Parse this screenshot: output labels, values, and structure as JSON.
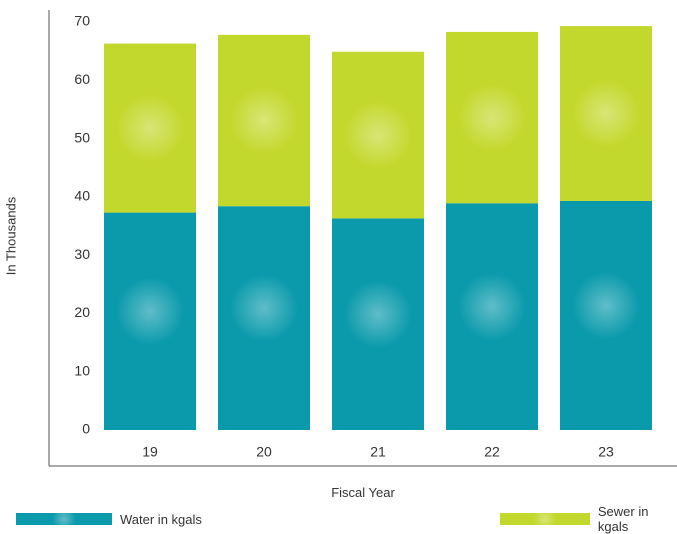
{
  "chart_data": {
    "type": "bar",
    "stacked": true,
    "categories": [
      "19",
      "20",
      "21",
      "22",
      "23"
    ],
    "series": [
      {
        "name": "Water in kgals",
        "color": "#0a9aab",
        "values": [
          37.3,
          38.4,
          36.3,
          38.9,
          39.3
        ]
      },
      {
        "name": "Sewer in kgals",
        "color": "#c3d82c",
        "values": [
          29.0,
          29.4,
          28.6,
          29.4,
          30.0
        ]
      }
    ],
    "xlabel": "Fiscal Year",
    "ylabel": "In Thousands",
    "ylim": [
      0,
      70
    ],
    "yticks": [
      0,
      10,
      20,
      30,
      40,
      50,
      60,
      70
    ],
    "grid": false,
    "legend": "bottom"
  }
}
